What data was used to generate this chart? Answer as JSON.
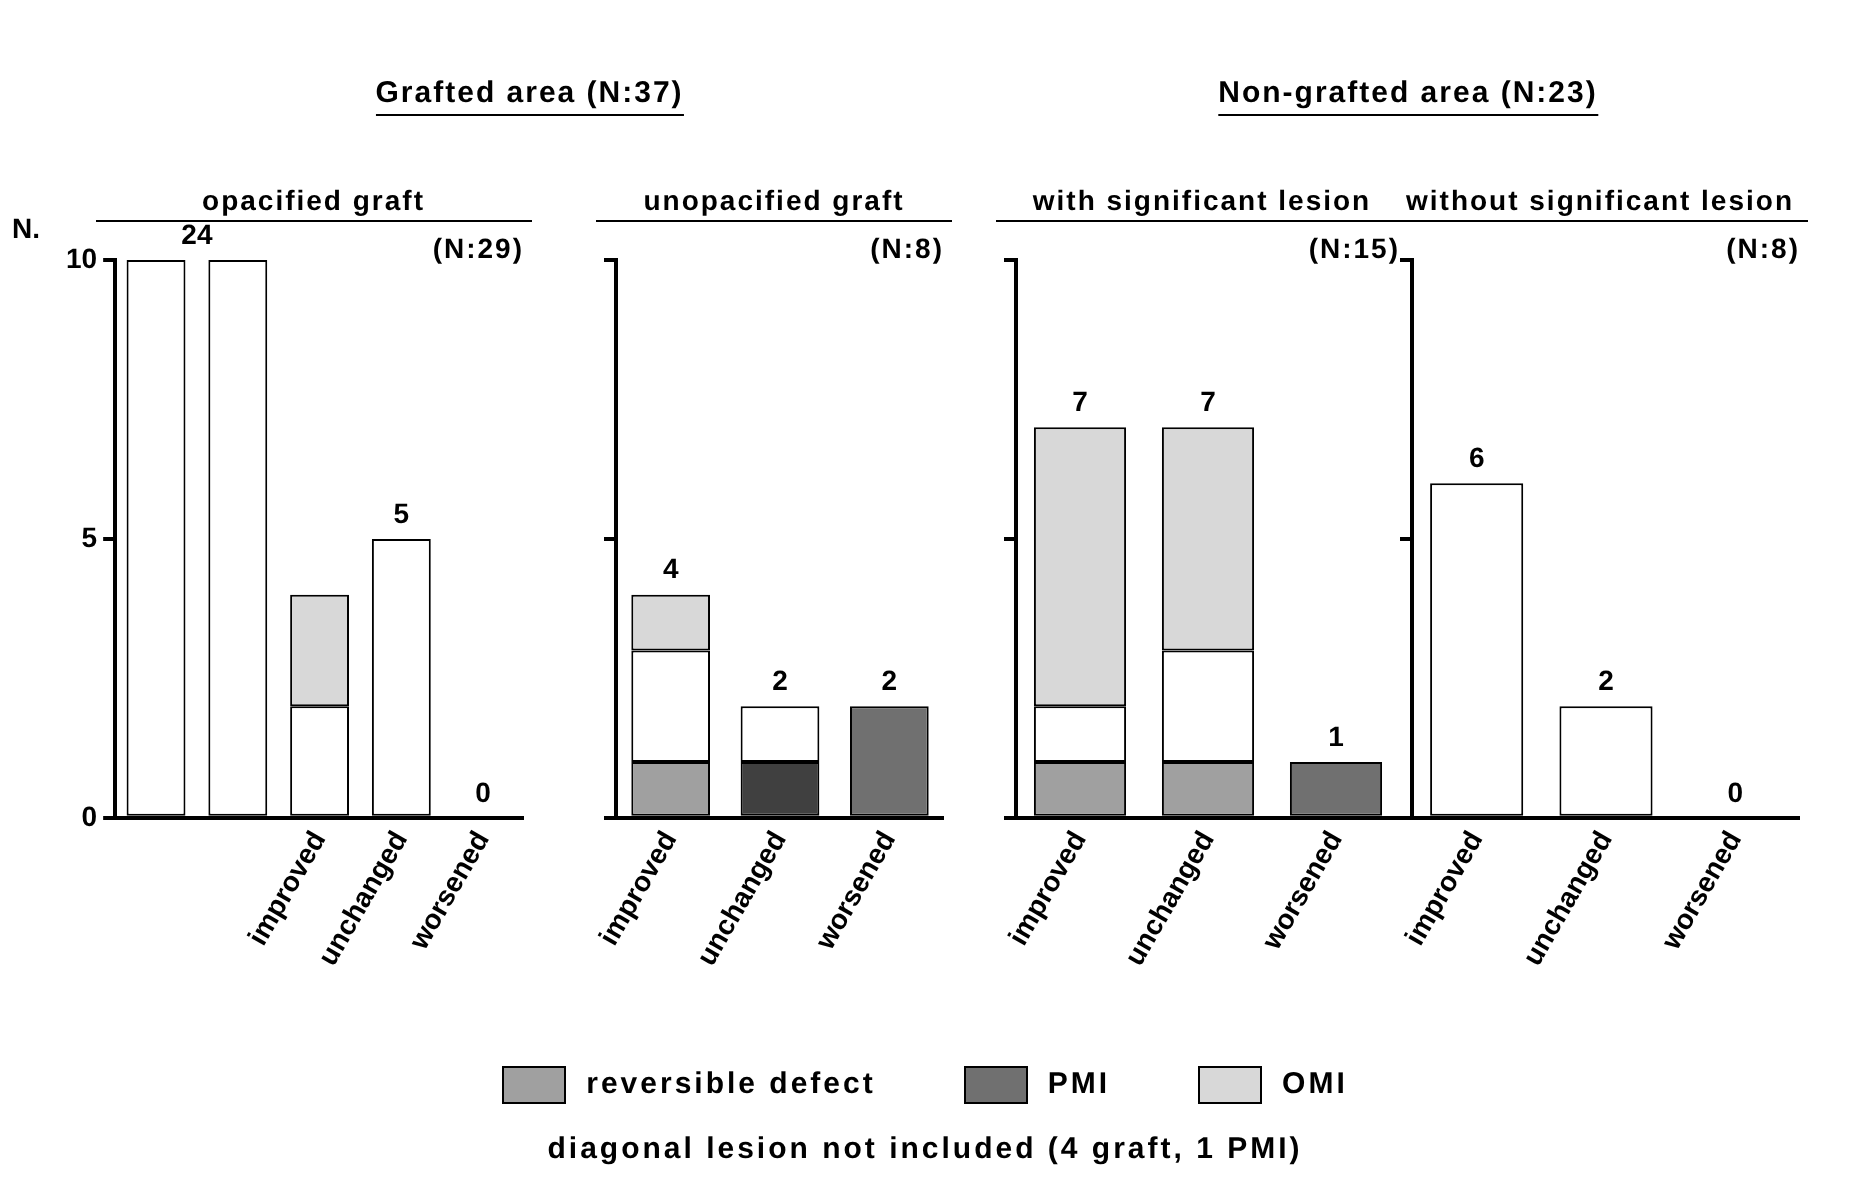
{
  "chart_data": [
    {
      "type": "bar",
      "stacked": true,
      "title": "opacified graft",
      "subtitle": "(N:29)",
      "ylabel": "N.",
      "annotations": [
        "Grafted area (N:37)",
        "24"
      ],
      "categories": [
        null,
        null,
        "improved",
        "unchanged",
        "worsened"
      ],
      "ylim": [
        0,
        10
      ],
      "yticks": [
        0,
        5,
        10
      ],
      "grid": false,
      "totals": [
        null,
        null,
        null,
        "5",
        "0"
      ],
      "series": [
        {
          "color": "#ffffff",
          "values": [
            10,
            10,
            2,
            5,
            0
          ]
        },
        {
          "color": "#d8d8d8",
          "values": [
            null,
            null,
            2,
            null,
            null
          ]
        }
      ]
    },
    {
      "type": "bar",
      "stacked": true,
      "title": "unopacified graft",
      "subtitle": "(N:8)",
      "categories": [
        "improved",
        "unchanged",
        "worsened"
      ],
      "ylim": [
        0,
        10
      ],
      "yticks": [
        0,
        5,
        10
      ],
      "grid": false,
      "legend": "bottom",
      "tick_labels": "x",
      "totals": [
        "4",
        "2",
        "2"
      ],
      "series": [
        {
          "name": "reversible defect",
          "color": "#a0a0a0",
          "values": [
            1,
            null,
            null
          ]
        },
        {
          "color": "#404040",
          "values": [
            null,
            1,
            null
          ]
        },
        {
          "name": "PMI",
          "color": "#707070",
          "values": [
            null,
            null,
            2
          ]
        },
        {
          "color": "#ffffff",
          "values": [
            2,
            1,
            null
          ]
        },
        {
          "name": "OMI",
          "color": "#d8d8d8",
          "values": [
            1,
            null,
            null
          ]
        }
      ]
    },
    {
      "type": "bar",
      "stacked": true,
      "title": "with significant lesion",
      "subtitle": "(N:15)",
      "annotations": [
        "Non-grafted area (N:23)"
      ],
      "categories": [
        "improved",
        "unchanged",
        "worsened"
      ],
      "ylim": [
        0,
        10
      ],
      "yticks": [
        0,
        5,
        10
      ],
      "grid": false,
      "tick_labels": "x",
      "totals": [
        "7",
        "7",
        "1"
      ],
      "series": [
        {
          "color": "#a0a0a0",
          "values": [
            1,
            1,
            null
          ]
        },
        {
          "color": "#707070",
          "values": [
            null,
            null,
            1
          ]
        },
        {
          "color": "#ffffff",
          "values": [
            1,
            2,
            null
          ]
        },
        {
          "color": "#d8d8d8",
          "values": [
            5,
            4,
            null
          ]
        }
      ]
    },
    {
      "type": "bar",
      "stacked": true,
      "title": "without significant lesion",
      "subtitle": "(N:8)",
      "annotations": [
        "diagonal lesion not included (4 graft, 1 PMI)"
      ],
      "categories": [
        "improved",
        "unchanged",
        "worsened"
      ],
      "ylim": [
        0,
        10
      ],
      "yticks": [
        0,
        5,
        10
      ],
      "grid": false,
      "tick_labels": "x",
      "totals": [
        "6",
        "2",
        "0"
      ],
      "series": [
        {
          "color": "#ffffff",
          "values": [
            6,
            2,
            0
          ]
        }
      ]
    }
  ]
}
